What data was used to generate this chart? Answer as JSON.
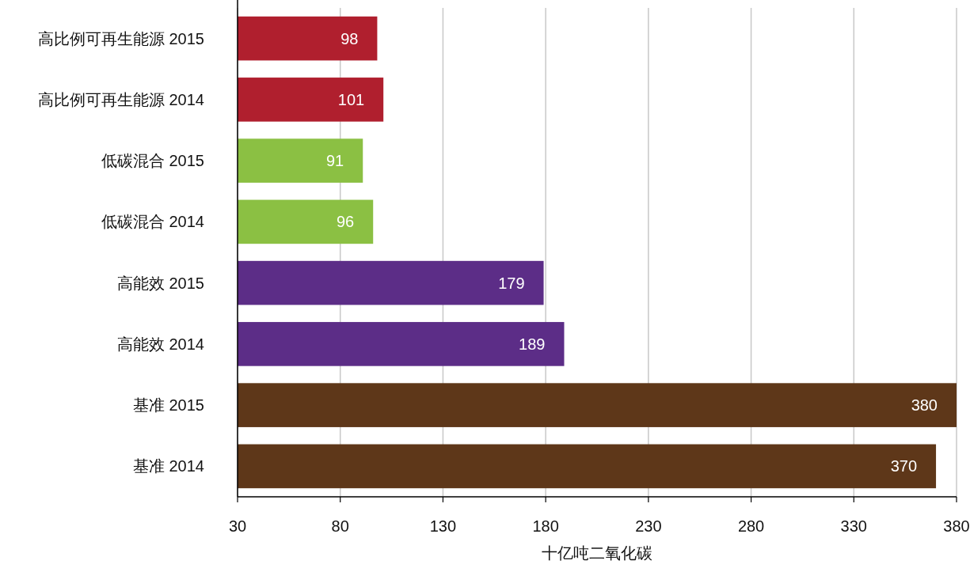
{
  "chart_data": {
    "type": "bar",
    "orientation": "horizontal",
    "categories": [
      "高比例可再生能源 2015",
      "高比例可再生能源 2014",
      "低碳混合 2015",
      "低碳混合 2014",
      "高能效 2015",
      "高能效 2014",
      "基准 2015",
      "基准 2014"
    ],
    "values": [
      98,
      101,
      91,
      96,
      179,
      189,
      380,
      370
    ],
    "colors": [
      "#b01f2e",
      "#b01f2e",
      "#8bc043",
      "#8bc043",
      "#5c2d87",
      "#5c2d87",
      "#5e3719",
      "#5e3719"
    ],
    "xlim": [
      30,
      380
    ],
    "xticks": [
      30,
      80,
      130,
      180,
      230,
      280,
      330,
      380
    ],
    "grid": "x",
    "data_labels": true,
    "xlabel": "十亿吨二氧化碳"
  }
}
